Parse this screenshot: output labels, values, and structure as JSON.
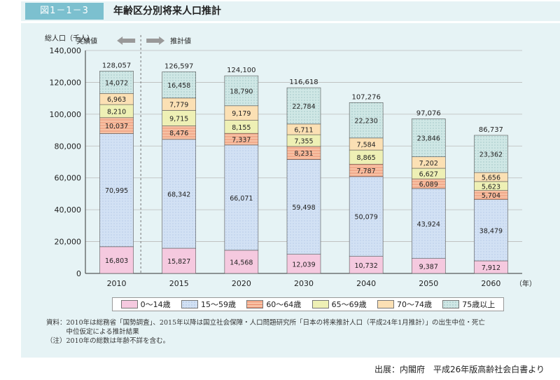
{
  "figure": {
    "number": "図1－1－3",
    "title": "年齢区分別将来人口推計"
  },
  "annotations": {
    "actual": "実績値",
    "estimate": "推計値"
  },
  "chart_data": {
    "type": "bar",
    "stacked": true,
    "ylabel": "総人口（千人）",
    "xunit": "（年）",
    "ylim": [
      0,
      140000
    ],
    "yticks": [
      "0",
      "20,000",
      "40,000",
      "60,000",
      "80,000",
      "100,000",
      "120,000",
      "140,000"
    ],
    "categories": [
      "2010",
      "2015",
      "2020",
      "2030",
      "2040",
      "2050",
      "2060"
    ],
    "totals": [
      "128,057",
      "126,597",
      "124,100",
      "116,618",
      "107,276",
      "97,076",
      "86,737"
    ],
    "series": [
      {
        "name": "0～14歳",
        "color": "#f5c9df",
        "values": [
          16803,
          15827,
          14568,
          12039,
          10732,
          9387,
          7912
        ],
        "labels": [
          "16,803",
          "15,827",
          "14,568",
          "12,039",
          "10,732",
          "9,387",
          "7,912"
        ]
      },
      {
        "name": "15～59歳",
        "color": "#d2e1f4",
        "values": [
          70995,
          68342,
          66071,
          59498,
          50079,
          43924,
          38479
        ],
        "labels": [
          "70,995",
          "68,342",
          "66,071",
          "59,498",
          "50,079",
          "43,924",
          "38,479"
        ]
      },
      {
        "name": "60～64歳",
        "color": "#f7c1a4",
        "values": [
          10037,
          8476,
          7337,
          8231,
          7787,
          6089,
          5704
        ],
        "labels": [
          "10,037",
          "8,476",
          "7,337",
          "8,231",
          "7,787",
          "6,089",
          "5,704"
        ]
      },
      {
        "name": "65～69歳",
        "color": "#eef0b5",
        "values": [
          8210,
          9715,
          8155,
          7355,
          8865,
          6627,
          5623
        ],
        "labels": [
          "8,210",
          "9,715",
          "8,155",
          "7,355",
          "8,865",
          "6,627",
          "5,623"
        ]
      },
      {
        "name": "70～74歳",
        "color": "#fbe0b4",
        "values": [
          6963,
          7779,
          9179,
          6711,
          7584,
          7202,
          5656
        ],
        "labels": [
          "6,963",
          "7,779",
          "9,179",
          "6,711",
          "7,584",
          "7,202",
          "5,656"
        ]
      },
      {
        "name": "75歳以上",
        "color": "#cfe7e5",
        "values": [
          14072,
          16458,
          18790,
          22784,
          22230,
          23846,
          23362
        ],
        "labels": [
          "14,072",
          "16,458",
          "18,790",
          "22,784",
          "22,230",
          "23,846",
          "23,362"
        ]
      }
    ]
  },
  "legend": [
    "0～14歳",
    "15～59歳",
    "60～64歳",
    "65～69歳",
    "70～74歳",
    "75歳以上"
  ],
  "notes": [
    "資料：2010年は総務省「国勢調査」、2015年以降は国立社会保障・人口問題研究所「日本の将来推計人口（平成24年1月推計）」の出生中位・死亡",
    "　　　中位仮定による推計結果",
    "（注）2010年の総数は年齢不詳を含む。"
  ],
  "source": "出展：内閣府　平成26年版高齢社会白書より"
}
